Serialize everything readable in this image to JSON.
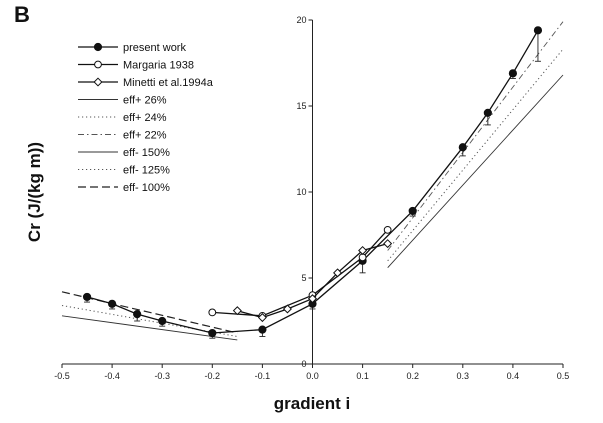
{
  "chart_data": {
    "type": "line",
    "panel_label": "B",
    "xlabel": "gradient i",
    "ylabel": "Cr (J/(kg m))",
    "xlim": [
      -0.5,
      0.5
    ],
    "ylim": [
      0,
      20
    ],
    "x_ticks": [
      "-0.5",
      "-0.4",
      "-0.3",
      "-0.2",
      "-0.1",
      "0.0",
      "0.1",
      "0.2",
      "0.3",
      "0.4",
      "0.5"
    ],
    "y_ticks": [
      "0",
      "5",
      "10",
      "15",
      "20"
    ],
    "legend_position": "top-left",
    "series": [
      {
        "name": "present work",
        "marker": "filled-circle",
        "dash": "solid",
        "x": [
          -0.45,
          -0.4,
          -0.35,
          -0.3,
          -0.2,
          -0.1,
          0.0,
          0.1,
          0.2,
          0.3,
          0.35,
          0.4,
          0.45
        ],
        "y": [
          3.9,
          3.5,
          2.9,
          2.5,
          1.8,
          2.0,
          3.5,
          6.0,
          8.9,
          12.6,
          14.6,
          16.9,
          19.4
        ],
        "error_down": [
          0.3,
          0.3,
          0.4,
          0.3,
          0.3,
          0.4,
          0.3,
          0.7,
          0.3,
          0.5,
          0.7,
          0.3,
          1.8
        ]
      },
      {
        "name": "Margaria 1938",
        "marker": "open-circle",
        "dash": "solid",
        "x": [
          -0.2,
          -0.1,
          0.0,
          0.1,
          0.15
        ],
        "y": [
          3.0,
          2.8,
          4.0,
          6.2,
          7.8
        ]
      },
      {
        "name": "Minetti et al.1994a",
        "marker": "open-diamond",
        "dash": "solid",
        "x": [
          -0.15,
          -0.1,
          -0.05,
          0.0,
          0.05,
          0.1,
          0.15
        ],
        "y": [
          3.1,
          2.7,
          3.2,
          3.8,
          5.3,
          6.6,
          7.0
        ]
      },
      {
        "name": "eff+ 26%",
        "dash": "solid-thin",
        "x": [
          0.15,
          0.5
        ],
        "y": [
          5.6,
          16.8
        ]
      },
      {
        "name": "eff+ 24%",
        "dash": "dotted",
        "x": [
          0.15,
          0.5
        ],
        "y": [
          6.0,
          18.3
        ]
      },
      {
        "name": "eff+ 22%",
        "dash": "dash-dot",
        "x": [
          0.15,
          0.5
        ],
        "y": [
          6.6,
          19.9
        ]
      },
      {
        "name": "eff- 150%",
        "dash": "solid-thin",
        "x": [
          -0.5,
          -0.15
        ],
        "y": [
          2.8,
          1.4
        ]
      },
      {
        "name": "eff- 125%",
        "dash": "dotted",
        "x": [
          -0.5,
          -0.15
        ],
        "y": [
          3.4,
          1.6
        ]
      },
      {
        "name": "eff- 100%",
        "dash": "long-dash",
        "x": [
          -0.5,
          -0.15
        ],
        "y": [
          4.2,
          1.8
        ]
      }
    ]
  }
}
